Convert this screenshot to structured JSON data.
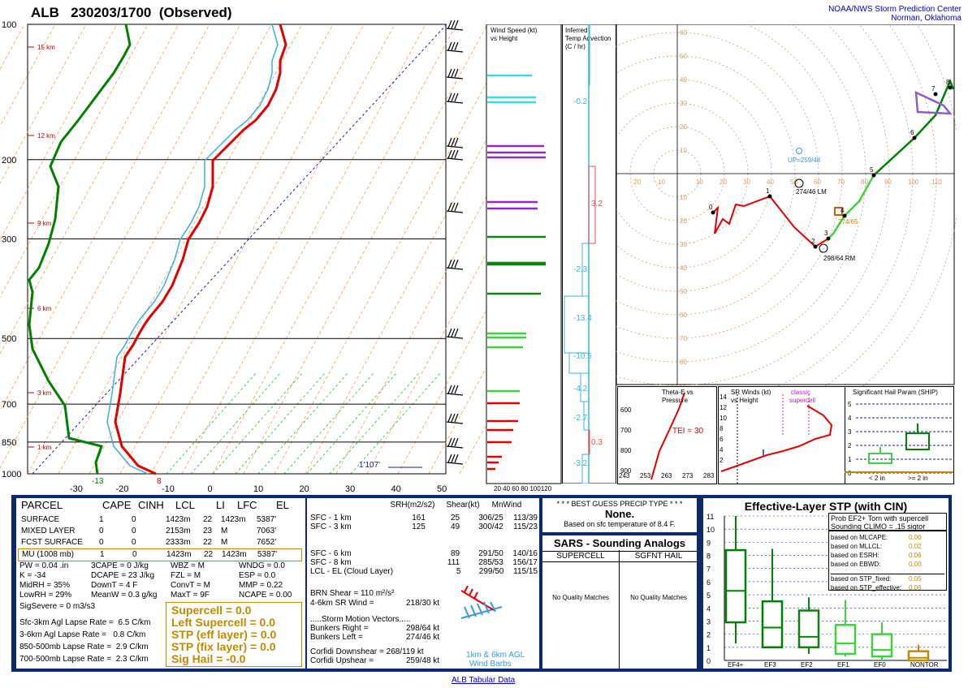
{
  "title": "ALB   230203/1700  (Observed)",
  "org": {
    "line1": "NOAA/NWS Storm Prediction Center",
    "line2": "Norman, Oklahoma"
  },
  "skewt": {
    "pressure_labels": [
      "100",
      "200",
      "300",
      "500",
      "700",
      "850",
      "1000"
    ],
    "temp_labels": [
      "-30",
      "-20",
      "-10",
      "0",
      "10",
      "20",
      "30",
      "40",
      "50"
    ],
    "height_labels": [
      "15 km",
      "12 km",
      "9 km",
      "6 km",
      "3 km",
      "1 km"
    ],
    "sfc_dewpoint": "-13",
    "sfc_temp": "8",
    "lcl_label": "1'107'"
  },
  "wind_panel": {
    "title": "Wind Speed (kt) vs Height",
    "axis": "20 40 60 80 100120"
  },
  "adv_panel": {
    "title": "Inferred Temp Advection (C / hr)",
    "values": [
      "-0.2",
      "3.2",
      "-2.3",
      "-13.4",
      "-10.5",
      "-4.2",
      "-2.7",
      "0.3",
      "-3.2"
    ]
  },
  "hodo": {
    "up_label": "UP=259/48",
    "lm_label": "274/46 LM",
    "rm_label": "298/64 RM",
    "mean_label": "274/65",
    "ring_labels": [
      "10",
      "20",
      "30",
      "40",
      "50",
      "60",
      "70",
      "80"
    ],
    "x_labels": [
      "10",
      "20",
      "30",
      "40",
      "50",
      "60",
      "70",
      "80",
      "90",
      "100",
      "110"
    ]
  },
  "theta_panel": {
    "title": "Theta-E vs Pressure",
    "tei": "TEI = 30",
    "xlabels": [
      "243",
      "253",
      "263",
      "273",
      "283"
    ],
    "ylabels": [
      "600",
      "700",
      "800",
      "900"
    ]
  },
  "srwind_panel": {
    "title": "SR Winds (kt) vs Height",
    "note": "classic supercell",
    "ylabels": [
      "14",
      "12",
      "10",
      "8",
      "6",
      "4",
      "2"
    ]
  },
  "ship_panel": {
    "title": "Significant Hail Param (SHIP)",
    "ylabels": [
      "5",
      "4",
      "3",
      "2",
      "1",
      "0"
    ],
    "xlabels": [
      "< 2 in",
      ">= 2 in"
    ]
  },
  "parcel": {
    "headers": [
      "PARCEL",
      "CAPE",
      "CINH",
      "LCL",
      "LI",
      "LFC",
      "EL"
    ],
    "rows": [
      [
        "SURFACE",
        "1",
        "0",
        "1423m",
        "22",
        "1423m",
        "5387'"
      ],
      [
        "MIXED LAYER",
        "0",
        "0",
        "2153m",
        "23",
        "M",
        "7063'"
      ],
      [
        "FCST SURFACE",
        "0",
        "0",
        "2333m",
        "22",
        "M",
        "7652'"
      ],
      [
        "MU   (1008 mb)",
        "1",
        "0",
        "1423m",
        "22",
        "1423m",
        "5387'"
      ]
    ],
    "indices": [
      [
        "PW = 0.04 .in",
        "3CAPE = 0 J/kg",
        "WBZ = M",
        "WNDG = 0.0"
      ],
      [
        "K = -34",
        "DCAPE = 23 J/kg",
        "FZL = M",
        "ESP = 0.0"
      ],
      [
        "MidRH = 35%",
        "DownT = 4 F",
        "ConvT = M",
        "MMP = 0.22"
      ],
      [
        "LowRH = 29%",
        "MeanW = 0.3 g/kg",
        "MaxT = 9F",
        "NCAPE = 0.00"
      ]
    ],
    "sigsevere": "SigSevere = 0 m3/s3",
    "lapse": [
      "Sfc-3km Agl Lapse Rate =  6.5 C/km",
      "3-6km Agl Lapse Rate =   0.8 C/km",
      "850-500mb Lapse Rate =  2.9 C/km",
      "700-500mb Lapse Rate =  2.3 C/km"
    ],
    "params": [
      "Supercell = 0.0",
      "Left Supercell = 0.0",
      "STP (eff layer) = 0.0",
      "STP (fix layer) = 0.0",
      "Sig Hail = -0.0"
    ]
  },
  "kinematics": {
    "headers": [
      "SRH(m2/s2)",
      "Shear(kt)",
      "MnWind",
      "SRW"
    ],
    "rows": [
      [
        "SFC - 1 km",
        "161",
        "25",
        "306/25",
        "113/39"
      ],
      [
        "SFC - 3 km",
        "125",
        "49",
        "300/42",
        "115/23"
      ],
      [
        "SFC - 6 km",
        "",
        "89",
        "291/50",
        "140/16"
      ],
      [
        "SFC - 8 km",
        "",
        "111",
        "285/53",
        "156/17"
      ],
      [
        "LCL - EL (Cloud Layer)",
        "",
        "5",
        "299/50",
        "115/15"
      ]
    ],
    "brn": "BRN Shear =  110 m²/s²",
    "sr46": "4-6km SR Wind =",
    "sr46v": "218/30 kt",
    "storm_title": ".....Storm Motion Vectors.....",
    "bright": "Bunkers Right =",
    "brightv": "298/64 kt",
    "bleft": "Bunkers Left =",
    "bleftv": "274/46 kt",
    "cdown": "Corfidi Downshear = 268/119 kt",
    "cup": "Corfidi Upshear =",
    "cupv": "259/48 kt",
    "barb_label1": "1km & 6km AGL",
    "barb_label2": "Wind Barbs"
  },
  "precip": {
    "title": "* * * BEST GUESS PRECIP TYPE * * *",
    "value": "None.",
    "note": "Based on sfc temperature of 8.4 F."
  },
  "sars": {
    "title": "SARS - Sounding Analogs",
    "col1": "SUPERCELL",
    "col2": "SGFNT HAIL",
    "m1": "No Quality Matches",
    "m2": "No Quality Matches"
  },
  "stp": {
    "title": "Effective-Layer STP (with CIN)",
    "prob": "Prob EF2+ Torn with supercell",
    "climo": "Sounding CLIMO = .15 sigtor",
    "based": [
      [
        "based on MLCAPE:",
        "0.00"
      ],
      [
        "based on MLLCL:",
        "0.02"
      ],
      [
        "based on ESRH:",
        "0.06"
      ],
      [
        "based on EBWD:",
        "0.00"
      ],
      [
        "based on STP_fixed:",
        "0.05"
      ],
      [
        "based on STP_effective:",
        "0.06"
      ]
    ],
    "ylabels": [
      "11",
      "10",
      "9",
      "8",
      "7",
      "6",
      "5",
      "4",
      "3",
      "2",
      "1",
      "0"
    ],
    "categories": [
      "EF4+",
      "EF3",
      "EF2",
      "EF1",
      "EF0",
      "NONTOR"
    ]
  },
  "link": "ALB Tabular Data",
  "chart_data": [
    {
      "type": "line",
      "title": "",
      "xlabel": "Temperature (C)",
      "ylabel": "Pressure (mb)",
      "xlim": [
        -30,
        50
      ],
      "ylim": [
        1000,
        100
      ],
      "series": [
        {
          "name": "",
          "color": "#e00000",
          "x": [
            8,
            -2,
            -12,
            -18,
            -19,
            -20,
            -22,
            -27,
            -30,
            -35,
            -40,
            -48,
            -58
          ],
          "y": [
            1000,
            950,
            900,
            850,
            800,
            700,
            600,
            500,
            400,
            300,
            200,
            150,
            100
          ]
        },
        {
          "name": "",
          "color": "#008000",
          "x": [
            -13,
            -30,
            -40,
            -50,
            -55,
            -60,
            -62,
            -65,
            -70,
            -75,
            -80,
            -85,
            -90
          ],
          "y": [
            1000,
            950,
            900,
            850,
            800,
            700,
            600,
            500,
            400,
            300,
            200,
            150,
            100
          ]
        }
      ]
    },
    {
      "type": "line",
      "title": "",
      "xlabel": "",
      "ylabel": "",
      "color": "#e00000",
      "series": [
        {
          "name": "",
          "x": [
            -18,
            10,
            33,
            50,
            65,
            76,
            88,
            100,
            107
          ],
          "y": [
            -18,
            -10,
            -12,
            -20,
            -28,
            -32,
            -33,
            -34,
            -38
          ]
        }
      ]
    },
    {
      "type": "box",
      "title": "Effective-Layer STP (with CIN)",
      "categories": [
        "EF4+",
        "EF3",
        "EF2",
        "EF1",
        "EF0",
        "NONTOR"
      ],
      "boxes": [
        [
          1.3,
          2.9,
          5.3,
          8.4,
          11.0
        ],
        [
          1.0,
          1.0,
          2.5,
          4.5,
          8.5
        ],
        [
          0.5,
          1.0,
          1.8,
          3.8,
          4.8
        ],
        [
          0.3,
          0.5,
          1.3,
          2.7,
          4.6
        ],
        [
          0.0,
          0.3,
          0.8,
          2.0,
          2.9
        ],
        [
          0.0,
          0.0,
          0.2,
          0.7,
          1.2
        ]
      ]
    }
  ]
}
